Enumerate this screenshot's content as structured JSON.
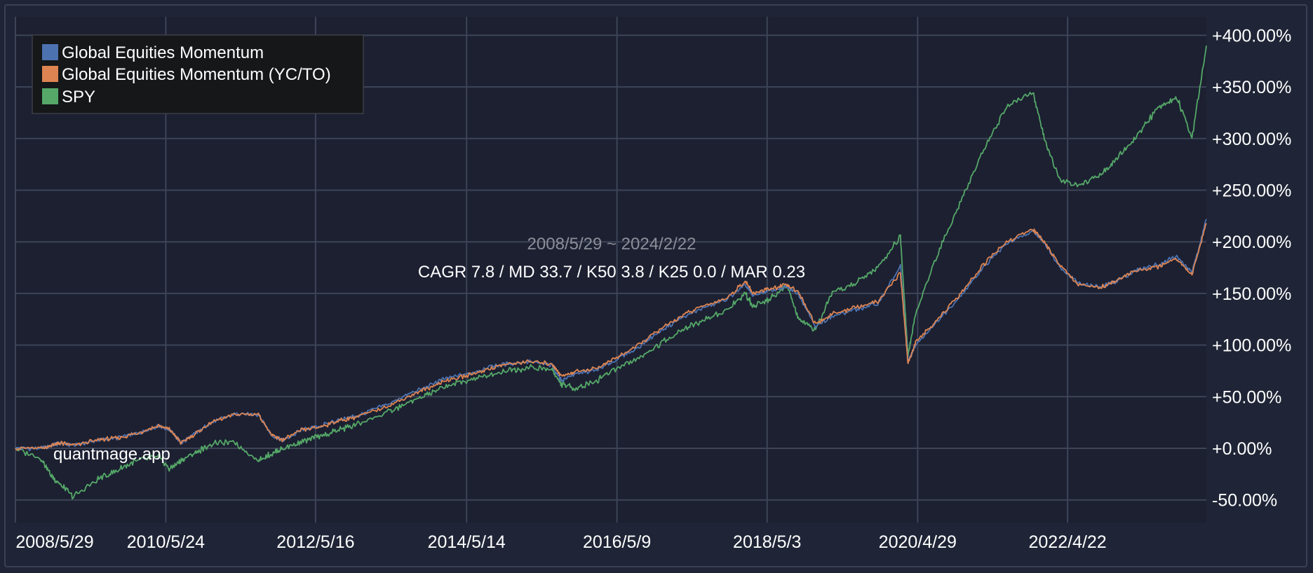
{
  "chart_data": {
    "type": "line",
    "title": "",
    "xlabel": "",
    "ylabel": "",
    "x_start": "2008/5/29",
    "x_end": "2024/2/22",
    "x_ticks": [
      "2008/5/29",
      "2010/5/24",
      "2012/5/16",
      "2014/5/14",
      "2016/5/9",
      "2018/5/3",
      "2020/4/29",
      "2022/4/22"
    ],
    "y_ticks": [
      "+400.00%",
      "+350.00%",
      "+300.00%",
      "+250.00%",
      "+200.00%",
      "+150.00%",
      "+100.00%",
      "+50.00%",
      "+0.00%",
      "-50.00%"
    ],
    "y_tick_values": [
      400,
      350,
      300,
      250,
      200,
      150,
      100,
      50,
      0,
      -50
    ],
    "ylim": [
      -60,
      405
    ],
    "grid": true,
    "legend_position": "top-left",
    "annotation_date": "2008/5/29 ~ 2024/2/22",
    "annotation_stats": "CAGR 7.8 / MD 33.7 / K50 3.8 / K25 0.0 / MAR 0.23",
    "watermark": "quantmage.app",
    "x": [
      2008.41,
      2008.75,
      2008.9,
      2009.0,
      2009.18,
      2009.5,
      2009.75,
      2010.0,
      2010.3,
      2010.45,
      2010.6,
      2010.8,
      2011.0,
      2011.3,
      2011.62,
      2011.8,
      2011.95,
      2012.2,
      2012.45,
      2012.7,
      2012.95,
      2013.3,
      2013.6,
      2013.85,
      2014.1,
      2014.4,
      2014.7,
      2014.95,
      2015.2,
      2015.5,
      2015.62,
      2015.8,
      2016.1,
      2016.3,
      2016.6,
      2016.9,
      2017.2,
      2017.5,
      2017.8,
      2018.05,
      2018.15,
      2018.35,
      2018.6,
      2018.75,
      2018.98,
      2019.2,
      2019.5,
      2019.8,
      2020.1,
      2020.2,
      2020.3,
      2020.6,
      2020.9,
      2021.2,
      2021.5,
      2021.85,
      2022.0,
      2022.2,
      2022.45,
      2022.75,
      2022.95,
      2023.2,
      2023.5,
      2023.75,
      2023.95,
      2024.14
    ],
    "series": [
      {
        "name": "Global Equities Momentum",
        "color": "#4c72b0",
        "values": [
          0,
          0,
          3,
          5,
          3,
          8,
          10,
          14,
          22,
          18,
          5,
          15,
          25,
          33,
          33,
          12,
          8,
          18,
          22,
          28,
          32,
          42,
          52,
          60,
          68,
          72,
          80,
          82,
          84,
          80,
          66,
          72,
          76,
          84,
          96,
          112,
          126,
          136,
          144,
          158,
          148,
          152,
          156,
          150,
          118,
          128,
          134,
          140,
          176,
          84,
          100,
          124,
          148,
          176,
          198,
          210,
          200,
          176,
          160,
          156,
          162,
          172,
          178,
          186,
          170,
          222
        ]
      },
      {
        "name": "Global Equities Momentum (YC/TO)",
        "color": "#dd8452",
        "values": [
          0,
          0,
          3,
          5,
          3,
          8,
          10,
          14,
          22,
          18,
          5,
          15,
          25,
          33,
          33,
          12,
          8,
          18,
          21,
          27,
          31,
          40,
          50,
          58,
          66,
          71,
          78,
          82,
          84,
          82,
          70,
          74,
          78,
          86,
          98,
          114,
          128,
          138,
          145,
          162,
          150,
          154,
          158,
          152,
          120,
          130,
          136,
          142,
          170,
          82,
          102,
          126,
          150,
          178,
          200,
          212,
          200,
          178,
          158,
          156,
          162,
          172,
          176,
          184,
          168,
          218
        ]
      },
      {
        "name": "SPY",
        "color": "#55a868",
        "values": [
          0,
          -10,
          -28,
          -35,
          -47,
          -30,
          -22,
          -12,
          -8,
          -20,
          -12,
          -4,
          4,
          6,
          -12,
          -5,
          0,
          6,
          12,
          18,
          24,
          34,
          44,
          52,
          60,
          66,
          72,
          76,
          78,
          76,
          62,
          58,
          66,
          76,
          86,
          100,
          114,
          124,
          134,
          150,
          138,
          144,
          158,
          125,
          115,
          150,
          160,
          175,
          205,
          90,
          130,
          190,
          240,
          290,
          330,
          345,
          300,
          260,
          255,
          265,
          280,
          300,
          330,
          340,
          300,
          390
        ]
      }
    ]
  }
}
